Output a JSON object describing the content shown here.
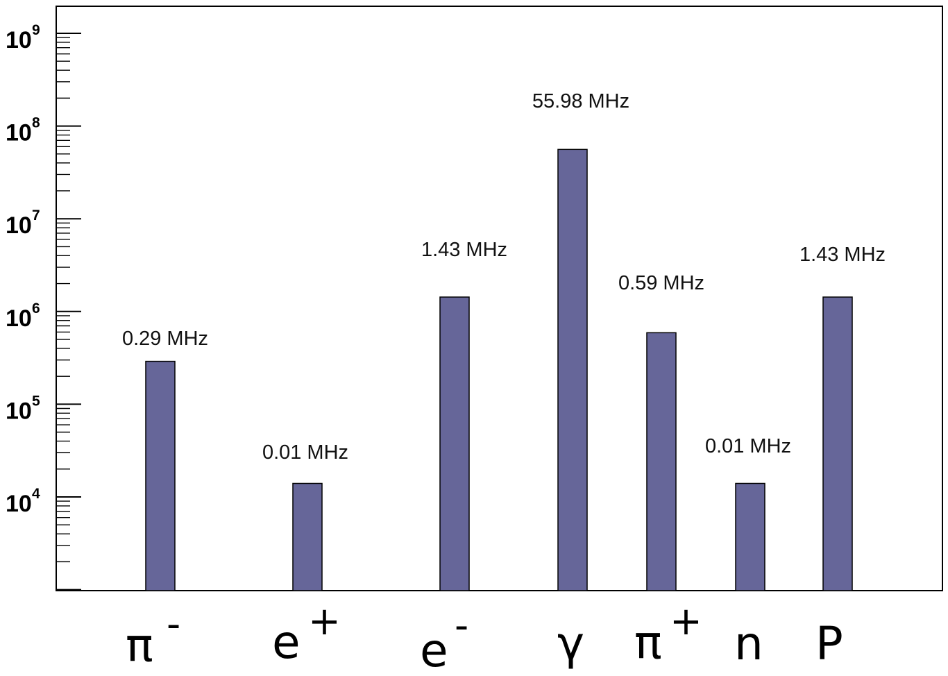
{
  "chart_data": {
    "type": "bar",
    "scale": "log",
    "ylim": [
      1000,
      1000000000
    ],
    "grid": false,
    "title": "",
    "xlabel": "",
    "ylabel": "",
    "y_ticks": [
      {
        "base": "10",
        "exp": "9"
      },
      {
        "base": "10",
        "exp": "8"
      },
      {
        "base": "10",
        "exp": "7"
      },
      {
        "base": "10",
        "exp": "6"
      },
      {
        "base": "10",
        "exp": "5"
      },
      {
        "base": "10",
        "exp": "4"
      }
    ],
    "bar_color": "#666699",
    "categories": [
      {
        "base": "π",
        "sup": "-"
      },
      {
        "base": "e",
        "sup": "+"
      },
      {
        "base": "e",
        "sup": "-"
      },
      {
        "base": "γ",
        "sup": ""
      },
      {
        "base": "π",
        "sup": "+"
      },
      {
        "base": "n",
        "sup": ""
      },
      {
        "base": "P",
        "sup": ""
      }
    ],
    "values": [
      290000,
      14000,
      1430000,
      55980000,
      590000,
      14000,
      1430000
    ],
    "data_labels": [
      "0.29 MHz",
      "0.01 MHz",
      "1.43 MHz",
      "55.98 MHz",
      "0.59 MHz",
      "0.01 MHz",
      "1.43 MHz"
    ]
  }
}
